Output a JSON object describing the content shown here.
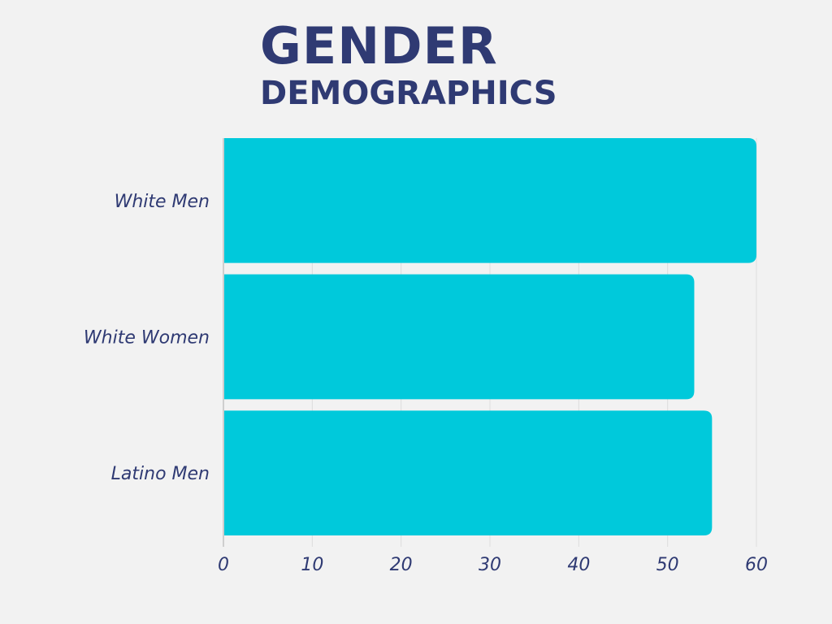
{
  "colors": {
    "background": "#f2f2f2",
    "bar": "#00c9db",
    "text": "#2f3a73",
    "grid": "#dddddd",
    "axis": "#cfcfcf"
  },
  "chart_data": {
    "type": "bar",
    "orientation": "horizontal",
    "title": "GENDER",
    "subtitle": "DEMOGRAPHICS",
    "categories": [
      "White Men",
      "White Women",
      "Latino Men"
    ],
    "values": [
      60,
      53,
      55
    ],
    "xlabel": "",
    "ylabel": "",
    "xlim": [
      0,
      60
    ],
    "xticks": [
      "0",
      "10",
      "20",
      "30",
      "40",
      "50",
      "60"
    ],
    "grid": "vertical",
    "legend": "none"
  }
}
